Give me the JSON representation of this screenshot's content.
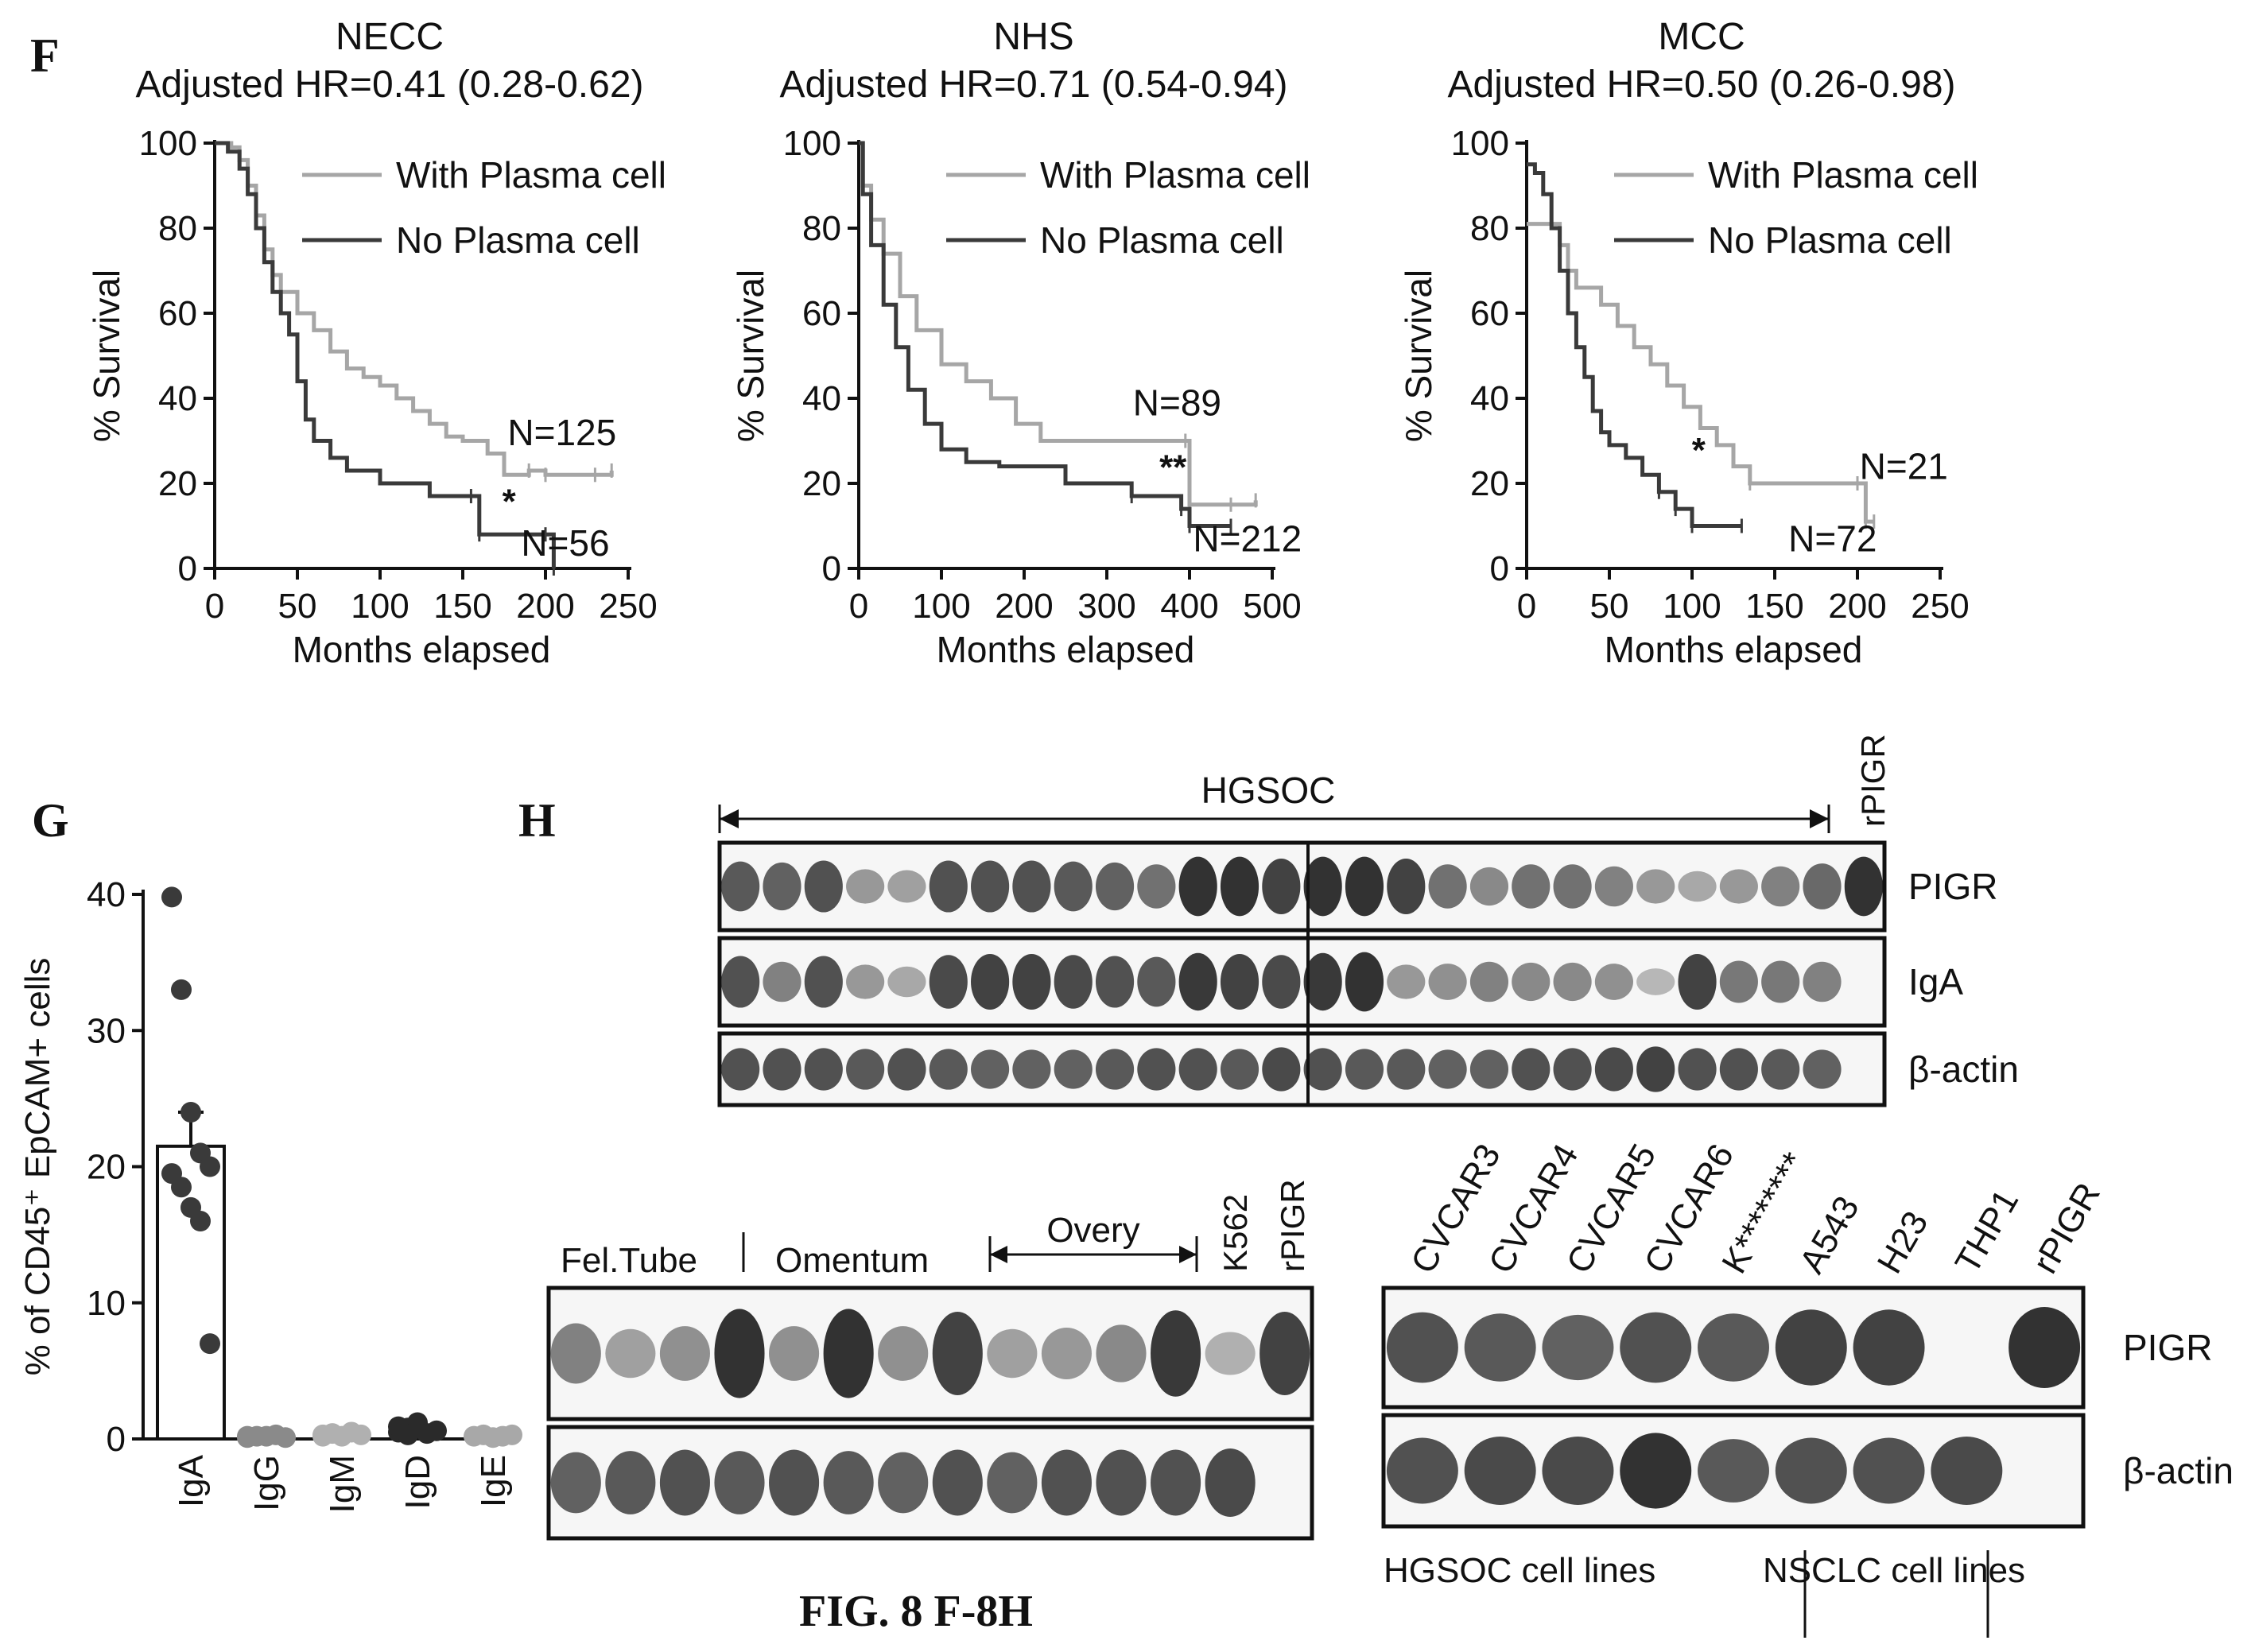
{
  "figure": {
    "caption": "FIG. 8 F-8H",
    "panel_labels": [
      "F",
      "G",
      "H"
    ]
  },
  "chart_data": [
    {
      "type": "line",
      "subtype": "kaplan-meier",
      "title": "NECC",
      "subtitle": "Adjusted HR=0.41 (0.28-0.62)",
      "xlabel": "Months elapsed",
      "ylabel": "% Survival",
      "xlim": [
        0,
        250
      ],
      "ylim": [
        0,
        100
      ],
      "xticks": [
        0,
        50,
        100,
        150,
        200,
        250
      ],
      "yticks": [
        0,
        20,
        40,
        60,
        80,
        100
      ],
      "legend_position": "top-right",
      "annotations": [
        {
          "text": "N=125",
          "x": 210,
          "y": 32
        },
        {
          "text": "*",
          "x": 178,
          "y": 16
        },
        {
          "text": "N=56",
          "x": 212,
          "y": 6
        }
      ],
      "series": [
        {
          "name": "With Plasma cell",
          "color": "#a6a6a6",
          "points": [
            [
              0,
              100
            ],
            [
              10,
              99
            ],
            [
              15,
              96
            ],
            [
              20,
              90
            ],
            [
              25,
              83
            ],
            [
              30,
              75
            ],
            [
              35,
              69
            ],
            [
              40,
              65
            ],
            [
              50,
              60
            ],
            [
              60,
              56
            ],
            [
              70,
              51
            ],
            [
              80,
              47
            ],
            [
              90,
              45
            ],
            [
              100,
              43
            ],
            [
              110,
              40
            ],
            [
              120,
              37
            ],
            [
              130,
              34
            ],
            [
              140,
              31
            ],
            [
              150,
              30
            ],
            [
              165,
              27
            ],
            [
              175,
              22
            ],
            [
              190,
              23
            ],
            [
              200,
              22
            ],
            [
              230,
              22
            ],
            [
              240,
              23
            ]
          ]
        },
        {
          "name": "No Plasma cell",
          "color": "#3a3a3a",
          "points": [
            [
              0,
              100
            ],
            [
              8,
              98
            ],
            [
              15,
              94
            ],
            [
              20,
              88
            ],
            [
              25,
              80
            ],
            [
              30,
              72
            ],
            [
              35,
              65
            ],
            [
              40,
              60
            ],
            [
              45,
              55
            ],
            [
              50,
              44
            ],
            [
              55,
              35
            ],
            [
              60,
              30
            ],
            [
              70,
              26
            ],
            [
              80,
              23
            ],
            [
              100,
              20
            ],
            [
              130,
              17
            ],
            [
              155,
              17
            ],
            [
              160,
              8
            ],
            [
              200,
              8
            ],
            [
              205,
              0
            ]
          ]
        }
      ]
    },
    {
      "type": "line",
      "subtype": "kaplan-meier",
      "title": "NHS",
      "subtitle": "Adjusted HR=0.71 (0.54-0.94)",
      "xlabel": "Months elapsed",
      "ylabel": "% Survival",
      "xlim": [
        0,
        500
      ],
      "ylim": [
        0,
        100
      ],
      "xticks": [
        0,
        100,
        200,
        300,
        400,
        500
      ],
      "yticks": [
        0,
        20,
        40,
        60,
        80,
        100
      ],
      "legend_position": "top-right",
      "annotations": [
        {
          "text": "N=89",
          "x": 385,
          "y": 39
        },
        {
          "text": "**",
          "x": 380,
          "y": 24
        },
        {
          "text": "N=212",
          "x": 470,
          "y": 7
        }
      ],
      "series": [
        {
          "name": "With Plasma cell",
          "color": "#a6a6a6",
          "points": [
            [
              0,
              100
            ],
            [
              5,
              90
            ],
            [
              15,
              82
            ],
            [
              30,
              74
            ],
            [
              50,
              64
            ],
            [
              70,
              56
            ],
            [
              100,
              48
            ],
            [
              130,
              44
            ],
            [
              160,
              40
            ],
            [
              190,
              34
            ],
            [
              220,
              30
            ],
            [
              300,
              30
            ],
            [
              395,
              30
            ],
            [
              400,
              15
            ],
            [
              450,
              15
            ],
            [
              480,
              16
            ]
          ]
        },
        {
          "name": "No Plasma cell",
          "color": "#3a3a3a",
          "points": [
            [
              0,
              100
            ],
            [
              5,
              88
            ],
            [
              15,
              76
            ],
            [
              30,
              62
            ],
            [
              45,
              52
            ],
            [
              60,
              42
            ],
            [
              80,
              34
            ],
            [
              100,
              28
            ],
            [
              130,
              25
            ],
            [
              170,
              24
            ],
            [
              250,
              20
            ],
            [
              330,
              17
            ],
            [
              390,
              14
            ],
            [
              400,
              10
            ],
            [
              450,
              10
            ]
          ]
        }
      ]
    },
    {
      "type": "line",
      "subtype": "kaplan-meier",
      "title": "MCC",
      "subtitle": "Adjusted HR=0.50 (0.26-0.98)",
      "xlabel": "Months elapsed",
      "ylabel": "% Survival",
      "xlim": [
        0,
        250
      ],
      "ylim": [
        0,
        100
      ],
      "xticks": [
        0,
        50,
        100,
        150,
        200,
        250
      ],
      "yticks": [
        0,
        20,
        40,
        60,
        80,
        100
      ],
      "legend_position": "top-right",
      "annotations": [
        {
          "text": "N=21",
          "x": 228,
          "y": 24
        },
        {
          "text": "*",
          "x": 104,
          "y": 28
        },
        {
          "text": "N=72",
          "x": 185,
          "y": 7
        }
      ],
      "series": [
        {
          "name": "With Plasma cell",
          "color": "#a6a6a6",
          "points": [
            [
              0,
              81
            ],
            [
              15,
              81
            ],
            [
              20,
              76
            ],
            [
              25,
              70
            ],
            [
              30,
              66
            ],
            [
              45,
              62
            ],
            [
              55,
              57
            ],
            [
              65,
              52
            ],
            [
              75,
              48
            ],
            [
              85,
              43
            ],
            [
              95,
              38
            ],
            [
              105,
              33
            ],
            [
              115,
              29
            ],
            [
              125,
              24
            ],
            [
              135,
              20
            ],
            [
              200,
              20
            ],
            [
              205,
              11
            ],
            [
              210,
              11
            ]
          ]
        },
        {
          "name": "No Plasma cell",
          "color": "#3a3a3a",
          "points": [
            [
              0,
              95
            ],
            [
              5,
              93
            ],
            [
              10,
              88
            ],
            [
              15,
              80
            ],
            [
              20,
              70
            ],
            [
              25,
              60
            ],
            [
              30,
              52
            ],
            [
              35,
              45
            ],
            [
              40,
              37
            ],
            [
              45,
              32
            ],
            [
              50,
              29
            ],
            [
              60,
              26
            ],
            [
              70,
              22
            ],
            [
              80,
              18
            ],
            [
              90,
              14
            ],
            [
              100,
              10
            ],
            [
              130,
              10
            ]
          ]
        }
      ]
    },
    {
      "type": "bar",
      "subtype": "bar-with-points",
      "ylabel": "% of CD45⁺ EpCAM+ cells",
      "ylim": [
        0,
        40
      ],
      "yticks": [
        0,
        10,
        20,
        30,
        40
      ],
      "categories": [
        "IgA",
        "IgG",
        "IgM",
        "IgD",
        "IgE"
      ],
      "values": [
        21.5,
        0.2,
        0.3,
        0.6,
        0.2
      ],
      "error": [
        2.5,
        0.05,
        0.05,
        0.1,
        0.05
      ],
      "point_colors": [
        "#3a3a3a",
        "#8a8a8a",
        "#b0b0b0",
        "#2a2a2a",
        "#a8a8a8"
      ],
      "points": [
        [
          39.8,
          33.0,
          24.0,
          21.0,
          20.0,
          19.5,
          18.5,
          17.0,
          16.0,
          7.0
        ],
        [
          0.1,
          0.2,
          0.2,
          0.3,
          0.1,
          0.2
        ],
        [
          0.3,
          0.4,
          0.2,
          0.5,
          0.3,
          0.2
        ],
        [
          0.5,
          0.8,
          1.2,
          0.4,
          0.6,
          0.9,
          0.3
        ],
        [
          0.2,
          0.3,
          0.1,
          0.2,
          0.3
        ]
      ]
    }
  ],
  "blots": {
    "top": {
      "group_label": "HGSOC",
      "column_label": "rPIGR",
      "rows": [
        {
          "label": "PIGR",
          "intensities": [
            0.75,
            0.7,
            0.8,
            0.35,
            0.3,
            0.8,
            0.8,
            0.8,
            0.75,
            0.7,
            0.6,
            1,
            1,
            0.9,
            1,
            1,
            0.9,
            0.6,
            0.45,
            0.6,
            0.6,
            0.5,
            0.35,
            0.25,
            0.35,
            0.5,
            0.65,
            1
          ]
        },
        {
          "label": "IgA",
          "intensities": [
            0.8,
            0.5,
            0.8,
            0.35,
            0.25,
            0.85,
            0.9,
            0.9,
            0.85,
            0.8,
            0.75,
            0.95,
            0.9,
            0.85,
            0.95,
            1,
            0.35,
            0.4,
            0.5,
            0.45,
            0.45,
            0.4,
            0.15,
            0.9,
            0.55,
            0.55,
            0.5,
            0.0
          ]
        },
        {
          "label": "β-actin",
          "intensities": [
            0.8,
            0.8,
            0.8,
            0.75,
            0.8,
            0.75,
            0.7,
            0.7,
            0.7,
            0.75,
            0.8,
            0.8,
            0.75,
            0.85,
            0.8,
            0.75,
            0.75,
            0.7,
            0.7,
            0.8,
            0.8,
            0.85,
            0.9,
            0.8,
            0.8,
            0.75,
            0.7,
            0.0
          ]
        }
      ]
    },
    "bottom_left": {
      "header_labels": {
        "tube": "Fel.Tube",
        "omentum": "Omentum",
        "ovary": "Overy",
        "k562": "K562",
        "rpigr": "rPIGR"
      },
      "rows": [
        {
          "label": "",
          "intensities": [
            0.5,
            0.3,
            0.4,
            1,
            0.4,
            1,
            0.4,
            0.9,
            0.3,
            0.35,
            0.45,
            0.95,
            0.2,
            0.9
          ]
        },
        {
          "label": "",
          "intensities": [
            0.7,
            0.75,
            0.8,
            0.75,
            0.8,
            0.75,
            0.7,
            0.8,
            0.7,
            0.8,
            0.8,
            0.8,
            0.85,
            0.0
          ]
        }
      ]
    },
    "bottom_right": {
      "lanes": [
        "CVCAR3",
        "CVCAR4",
        "CVCAR5",
        "CVCAR6",
        "K********",
        "A543",
        "H23",
        "THP1",
        "rPIGR"
      ],
      "rows": [
        {
          "label": "PIGR",
          "intensities": [
            0.8,
            0.75,
            0.7,
            0.8,
            0.75,
            0.9,
            0.9,
            0.0,
            1
          ]
        },
        {
          "label": "β-actin",
          "intensities": [
            0.8,
            0.85,
            0.85,
            1,
            0.75,
            0.8,
            0.8,
            0.85,
            0.0
          ]
        }
      ],
      "group_labels": {
        "hgsoc": "HGSOC cell lines",
        "nsclc": "NSCLC cell lines"
      }
    }
  }
}
